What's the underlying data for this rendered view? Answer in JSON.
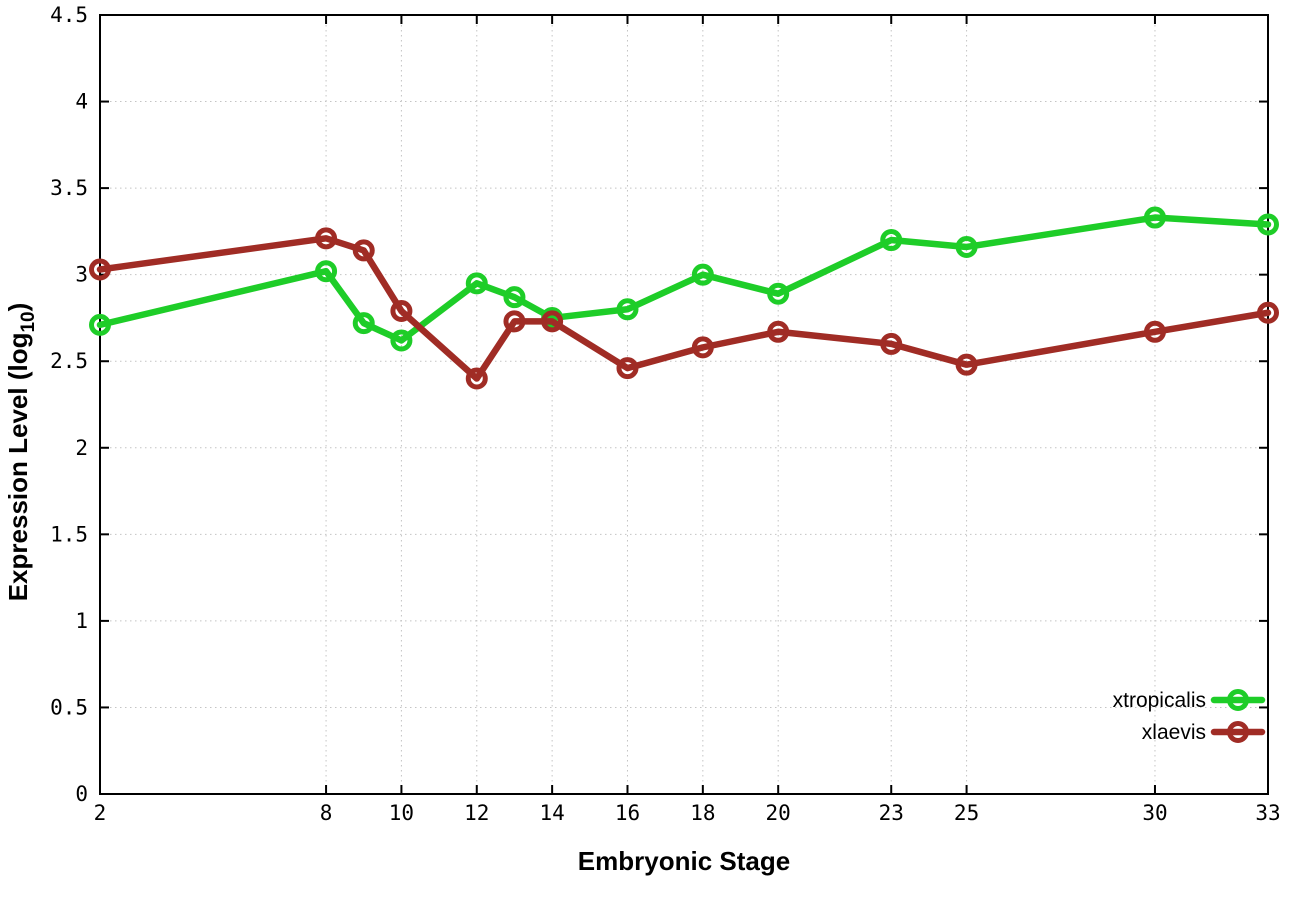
{
  "chart_data": {
    "type": "line",
    "title": "",
    "xlabel": "Embryonic Stage",
    "ylabel": {
      "pre": "Expression Level (log",
      "sub": "10",
      "post": ")"
    },
    "xlim": [
      2,
      33
    ],
    "ylim": [
      0,
      4.5
    ],
    "x_ticks": [
      2,
      8,
      10,
      12,
      14,
      16,
      18,
      20,
      23,
      25,
      30,
      33
    ],
    "y_ticks": [
      0,
      0.5,
      1,
      1.5,
      2,
      2.5,
      3,
      3.5,
      4,
      4.5
    ],
    "grid": true,
    "legend_position": "bottom-right",
    "x": [
      2,
      8,
      9,
      10,
      12,
      13,
      14,
      16,
      18,
      20,
      23,
      25,
      30,
      33
    ],
    "series": [
      {
        "name": "xtropicalis",
        "color": "#1ecd28",
        "values": [
          2.71,
          3.02,
          2.72,
          2.62,
          2.95,
          2.87,
          2.75,
          2.8,
          3.0,
          2.89,
          3.2,
          3.16,
          3.33,
          3.29
        ]
      },
      {
        "name": "xlaevis",
        "color": "#a02c25",
        "values": [
          3.03,
          3.21,
          3.14,
          2.79,
          2.4,
          2.73,
          2.73,
          2.46,
          2.58,
          2.67,
          2.6,
          2.48,
          2.67,
          2.78
        ]
      }
    ],
    "colors": {
      "grid": "#c4c4c4",
      "border": "#000000",
      "text": "#000000"
    }
  }
}
